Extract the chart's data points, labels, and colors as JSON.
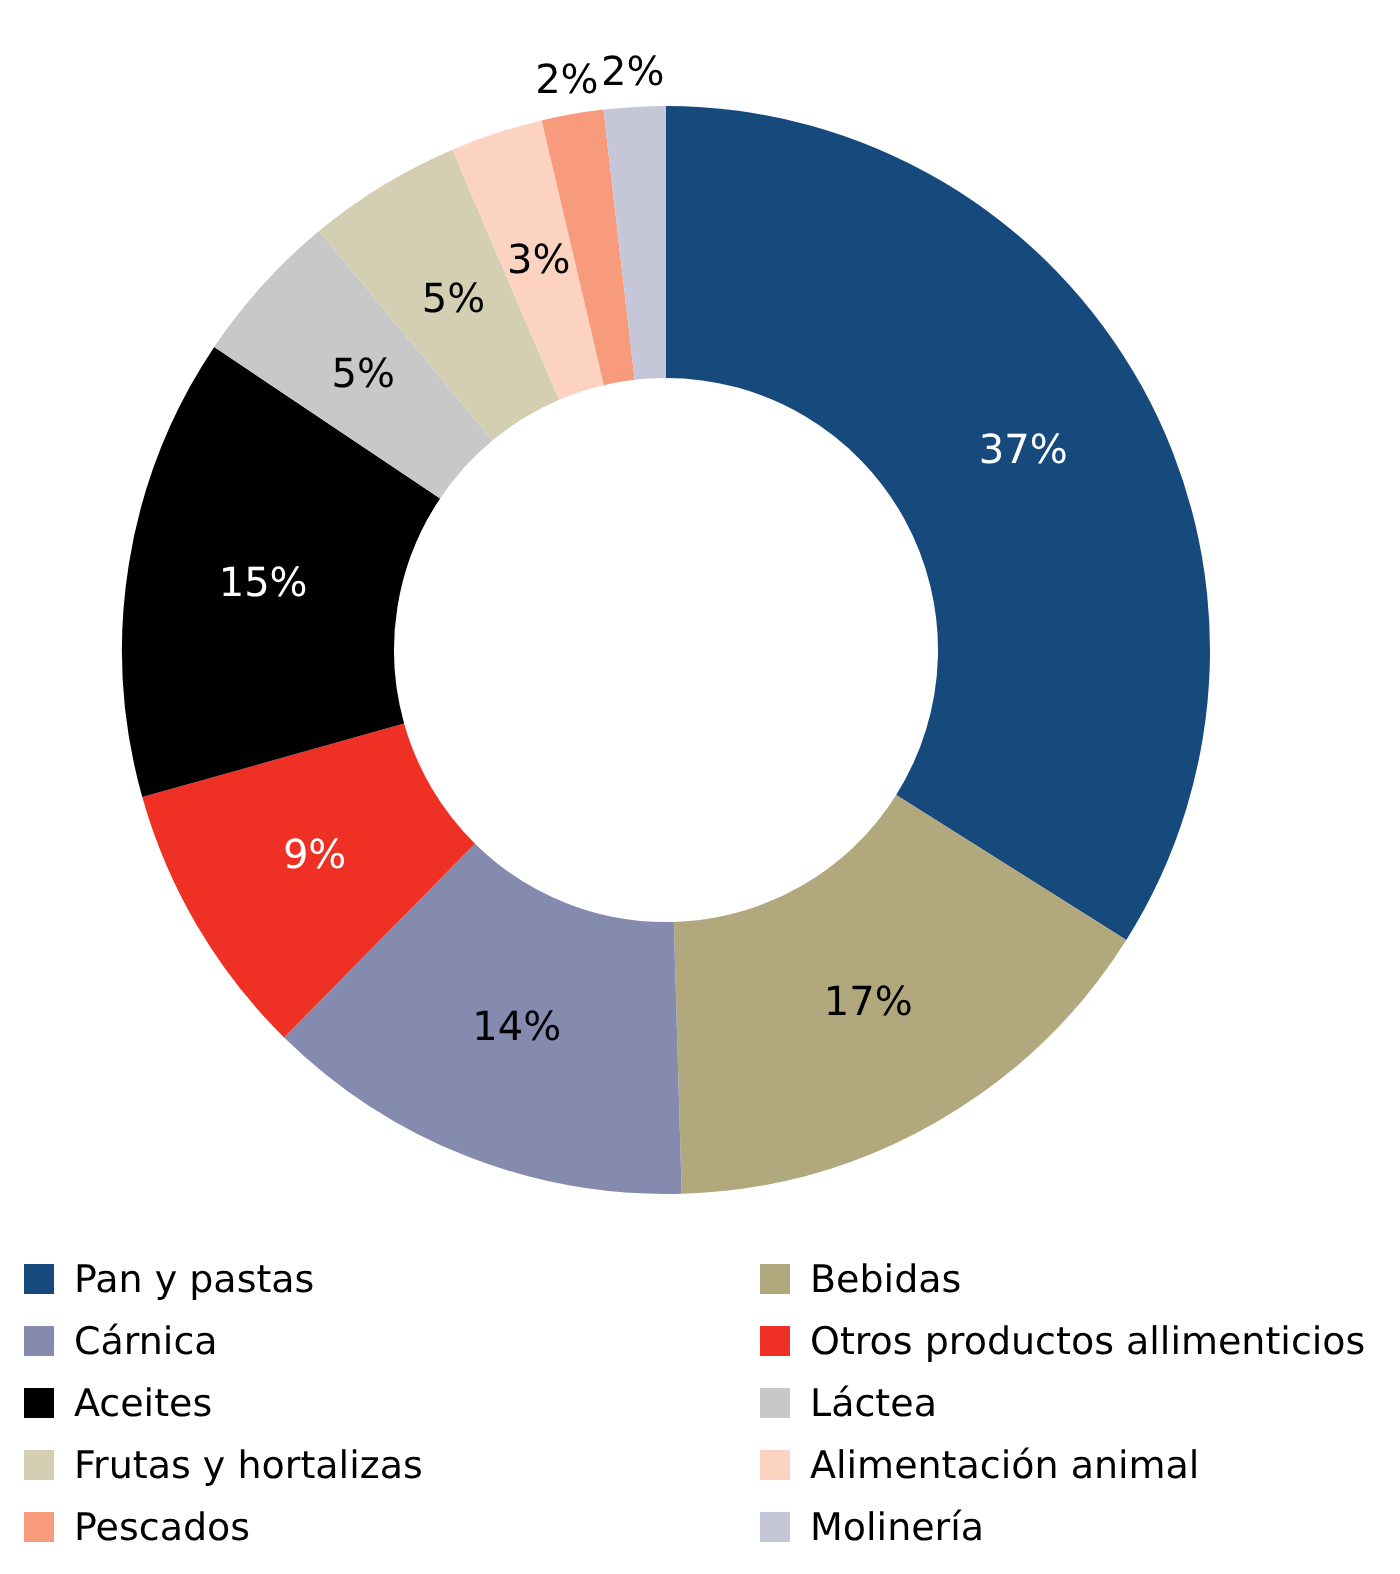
{
  "chart_data": {
    "type": "donut",
    "categories": [
      "Pan y pastas",
      "Bebidas",
      "Cárnica",
      "Otros productos allimenticios",
      "Aceites",
      "Láctea",
      "Frutas y hortalizas",
      "Alimentación animal",
      "Pescados",
      "Molinería"
    ],
    "values": [
      37,
      17,
      14,
      9,
      15,
      5,
      5,
      3,
      2,
      2
    ],
    "value_labels": [
      "37%",
      "17%",
      "14%",
      "9%",
      "15%",
      "5%",
      "5%",
      "3%",
      "2%",
      "2%"
    ],
    "colors": [
      "#174a7c",
      "#b1a87e",
      "#858bae",
      "#ee3124",
      "#000000",
      "#c8c8c8",
      "#d4cfb3",
      "#fcd3c1",
      "#f79b7c",
      "#c5c7d8"
    ],
    "legend": "bottom"
  }
}
